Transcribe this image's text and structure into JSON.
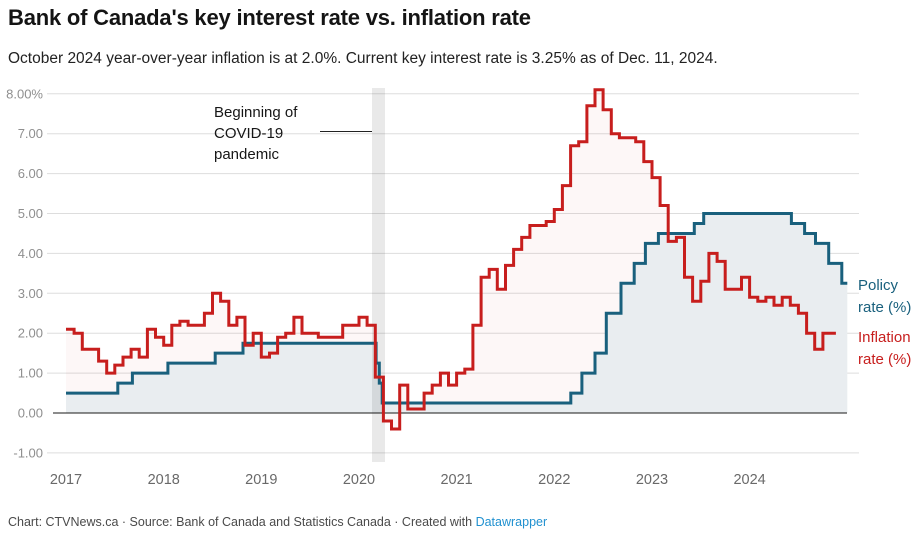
{
  "header": {
    "title": "Bank of Canada's key interest rate vs. inflation rate",
    "subtitle": "October 2024 year-over-year inflation is at 2.0%. Current key interest rate is 3.25% as of Dec. 11, 2024."
  },
  "annotation": {
    "lines": [
      "Beginning of",
      "COVID-19",
      "pandemic"
    ]
  },
  "legend": {
    "policy": [
      "Policy",
      "rate (%)"
    ],
    "inflation": [
      "Inflation",
      "rate (%)"
    ]
  },
  "footer": {
    "text": "Chart: CTVNews.ca · Source: Bank of Canada and Statistics Canada · Created with ",
    "link": "Datawrapper"
  },
  "colors": {
    "policy_line": "#19607d",
    "policy_fill": "#e9edf0",
    "inflation_line": "#c71e1d",
    "inflation_fill": "rgba(199,30,29,0.035)",
    "gridline": "#dddddd",
    "zero_line": "#191919",
    "covid_band": "rgba(0,0,0,0.085)",
    "y_label": "#8f8f8f",
    "x_label": "#696969",
    "footer_link": "#2191d0"
  },
  "chart_data": {
    "type": "line",
    "title": "Bank of Canada's key interest rate vs. inflation rate",
    "x_start": "2017-01",
    "frequency": "monthly",
    "ylim": [
      -1,
      8
    ],
    "grid": true,
    "legend_position": "right",
    "x_tick_labels": [
      "2017",
      "2018",
      "2019",
      "2020",
      "2021",
      "2022",
      "2023",
      "2024"
    ],
    "y_ticks": [
      {
        "value": 8,
        "label": "8.00%"
      },
      {
        "value": 7,
        "label": "7.00"
      },
      {
        "value": 6,
        "label": "6.00"
      },
      {
        "value": 5,
        "label": "5.00"
      },
      {
        "value": 4,
        "label": "4.00"
      },
      {
        "value": 3,
        "label": "3.00"
      },
      {
        "value": 2,
        "label": "2.00"
      },
      {
        "value": 1,
        "label": "1.00"
      },
      {
        "value": 0,
        "label": "0.00"
      },
      {
        "value": -1,
        "label": "-1.00"
      }
    ],
    "covid_band": {
      "label": "Beginning of COVID-19 pandemic",
      "period": "2020-03"
    },
    "series": [
      {
        "name": "Policy rate (%)",
        "style": "step",
        "rate_changes": [
          [
            "2017-01-01",
            0.5
          ],
          [
            "2017-07-12",
            0.75
          ],
          [
            "2017-09-06",
            1.0
          ],
          [
            "2018-01-17",
            1.25
          ],
          [
            "2018-07-11",
            1.5
          ],
          [
            "2018-10-24",
            1.75
          ],
          [
            "2020-03-04",
            1.25
          ],
          [
            "2020-03-16",
            0.75
          ],
          [
            "2020-03-27",
            0.25
          ],
          [
            "2022-03-02",
            0.5
          ],
          [
            "2022-04-13",
            1.0
          ],
          [
            "2022-06-01",
            1.5
          ],
          [
            "2022-07-13",
            2.5
          ],
          [
            "2022-09-07",
            3.25
          ],
          [
            "2022-10-26",
            3.75
          ],
          [
            "2022-12-07",
            4.25
          ],
          [
            "2023-01-25",
            4.5
          ],
          [
            "2023-06-07",
            4.75
          ],
          [
            "2023-07-12",
            5.0
          ],
          [
            "2024-06-05",
            4.75
          ],
          [
            "2024-07-24",
            4.5
          ],
          [
            "2024-09-04",
            4.25
          ],
          [
            "2024-10-23",
            3.75
          ],
          [
            "2024-12-11",
            3.25
          ]
        ],
        "end": "2024-12"
      },
      {
        "name": "Inflation rate (%)",
        "style": "step",
        "monthly_values": [
          2.1,
          2.0,
          1.6,
          1.6,
          1.3,
          1.0,
          1.2,
          1.4,
          1.6,
          1.4,
          2.1,
          1.9,
          1.7,
          2.2,
          2.3,
          2.2,
          2.2,
          2.5,
          3.0,
          2.8,
          2.2,
          2.4,
          1.7,
          2.0,
          1.4,
          1.5,
          1.9,
          2.0,
          2.4,
          2.0,
          2.0,
          1.9,
          1.9,
          1.9,
          2.2,
          2.2,
          2.4,
          2.2,
          0.9,
          -0.2,
          -0.4,
          0.7,
          0.1,
          0.1,
          0.5,
          0.7,
          1.0,
          0.7,
          1.0,
          1.1,
          2.2,
          3.4,
          3.6,
          3.1,
          3.7,
          4.1,
          4.4,
          4.7,
          4.7,
          4.8,
          5.1,
          5.7,
          6.7,
          6.8,
          7.7,
          8.1,
          7.6,
          7.0,
          6.9,
          6.9,
          6.8,
          6.3,
          5.9,
          5.2,
          4.3,
          4.4,
          3.4,
          2.8,
          3.3,
          4.0,
          3.8,
          3.1,
          3.1,
          3.4,
          2.9,
          2.8,
          2.9,
          2.7,
          2.9,
          2.7,
          2.5,
          2.0,
          1.6,
          2.0
        ],
        "end": "2024-10"
      }
    ]
  }
}
